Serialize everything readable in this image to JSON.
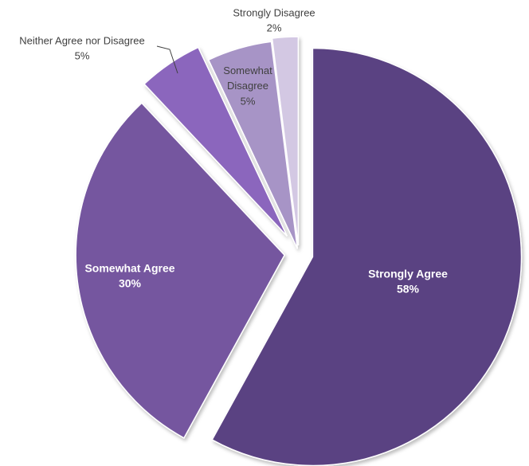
{
  "chart_data": {
    "type": "pie",
    "categories": [
      "Strongly Agree",
      "Somewhat Agree",
      "Neither Agree nor Disagree",
      "Somewhat Disagree",
      "Strongly Disagree"
    ],
    "values": [
      58,
      30,
      5,
      5,
      2
    ],
    "value_labels": [
      "58%",
      "30%",
      "5%",
      "5%",
      "2%"
    ],
    "colors": [
      "#5a4282",
      "#75579f",
      "#8b66bd",
      "#a794c6",
      "#d3c8e3"
    ]
  }
}
